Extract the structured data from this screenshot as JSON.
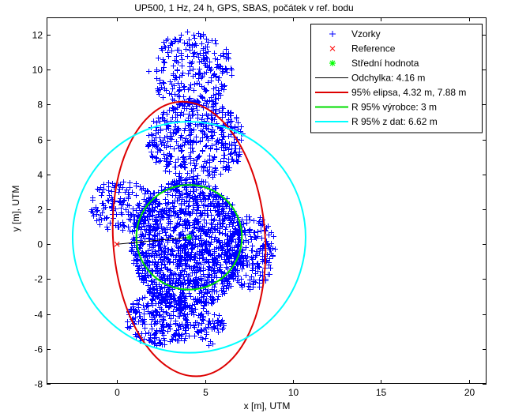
{
  "chart_data": {
    "type": "scatter",
    "title": "UP500, 1 Hz, 24 h, GPS, SBAS, počátek v ref. bodu",
    "xlabel": "x [m], UTM",
    "ylabel": "y [m], UTM",
    "xlim": [
      -4,
      21
    ],
    "ylim": [
      -8,
      13
    ],
    "xticks": [
      "0",
      "5",
      "10",
      "15",
      "20"
    ],
    "yticks": [
      "-8",
      "-6",
      "-4",
      "-2",
      "0",
      "2",
      "4",
      "6",
      "8",
      "10",
      "12"
    ],
    "xtick_values": [
      0,
      5,
      10,
      15,
      20
    ],
    "ytick_values": [
      -8,
      -6,
      -4,
      -2,
      0,
      2,
      4,
      6,
      8,
      10,
      12
    ],
    "grid": false,
    "legend_position": "top-right",
    "colors": {
      "samples": "#0000ff",
      "reference": "#ff0000",
      "mean": "#00ff00",
      "deviation": "#000000",
      "ellipse": "#dd0000",
      "r95_manufacturer": "#00dd00",
      "r95_data": "#00ffff"
    },
    "legend": [
      {
        "label": "Vzorky",
        "marker": "plus",
        "color": "#0000ff"
      },
      {
        "label": "Reference",
        "marker": "x",
        "color": "#ff0000"
      },
      {
        "label": "Střední hodnota",
        "marker": "star",
        "color": "#00ff00"
      },
      {
        "label": "Odchylka: 4.16 m",
        "marker": "line",
        "color": "#000000"
      },
      {
        "label": "95% elipsa, 4.32 m, 7.88 m",
        "marker": "line",
        "color": "#dd0000"
      },
      {
        "label": "R 95% výrobce: 3 m",
        "marker": "line",
        "color": "#00dd00"
      },
      {
        "label": "R 95% z dat: 6.62 m",
        "marker": "line",
        "color": "#00ffff"
      }
    ],
    "reference_point": [
      0,
      0
    ],
    "mean_point": [
      4.1,
      0.4
    ],
    "deviation_line": {
      "from": [
        0,
        0
      ],
      "to": [
        4.1,
        0.4
      ]
    },
    "ellipse": {
      "center": [
        4.1,
        0.3
      ],
      "semi_x": 4.32,
      "semi_y": 7.88,
      "angle_deg": 4
    },
    "circle_manufacturer": {
      "center": [
        4.1,
        0.4
      ],
      "radius": 3
    },
    "circle_data": {
      "center": [
        4.1,
        0.4
      ],
      "radius": 6.62
    },
    "sample_regions": [
      {
        "cx": 4.0,
        "cy": 0.0,
        "rx": 3.2,
        "ry": 3.8,
        "n": 1400
      },
      {
        "cx": 4.5,
        "cy": 6.0,
        "rx": 2.8,
        "ry": 2.3,
        "n": 450
      },
      {
        "cx": 4.2,
        "cy": 10.0,
        "rx": 2.4,
        "ry": 2.2,
        "n": 260
      },
      {
        "cx": 2.5,
        "cy": -4.3,
        "rx": 2.0,
        "ry": 1.6,
        "n": 260
      },
      {
        "cx": 0.3,
        "cy": 2.2,
        "rx": 1.8,
        "ry": 1.6,
        "n": 160
      },
      {
        "cx": 7.6,
        "cy": -0.4,
        "rx": 1.4,
        "ry": 2.2,
        "n": 200
      },
      {
        "cx": 5.2,
        "cy": -4.8,
        "rx": 0.9,
        "ry": 1.0,
        "n": 60
      }
    ]
  }
}
